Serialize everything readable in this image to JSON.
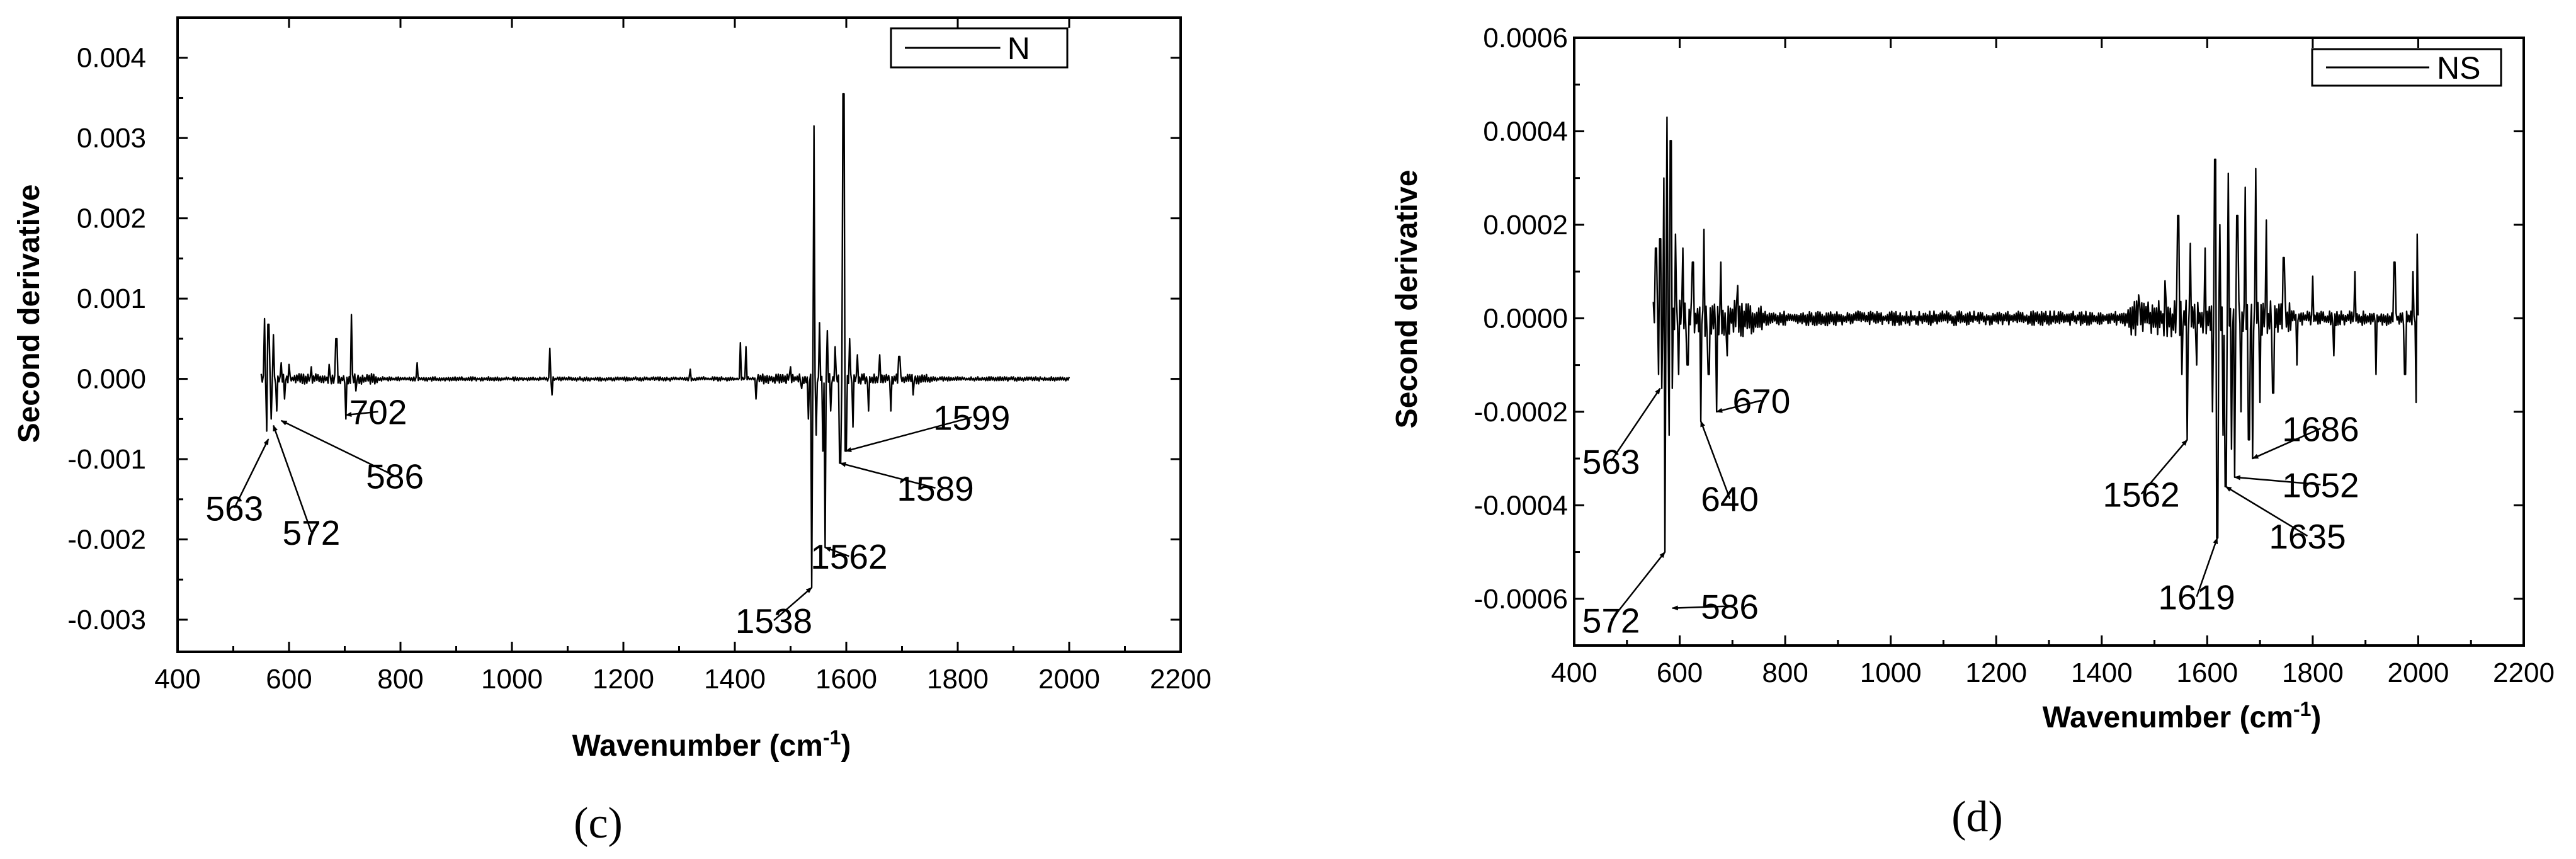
{
  "chart_data": [
    {
      "type": "line",
      "panel_label": "(c)",
      "legend": "N",
      "xlabel": "Wavenumber (cm",
      "xlabel_sup": "-1",
      "xlabel_close": ")",
      "ylabel": "Second derivative",
      "xlim": [
        400,
        2200
      ],
      "ylim": [
        -0.0034,
        0.0045
      ],
      "xticks": [
        400,
        600,
        800,
        1000,
        1200,
        1400,
        1600,
        1800,
        2000,
        2200
      ],
      "xtick_labels": [
        "400",
        "600",
        "800",
        "1000",
        "1200",
        "1400",
        "1600",
        "1800",
        "2000",
        "2200"
      ],
      "yticks": [
        -0.003,
        -0.002,
        -0.001,
        0.0,
        0.001,
        0.002,
        0.003,
        0.004
      ],
      "ytick_labels": [
        "-0.003",
        "-0.002",
        "-0.001",
        "0.000",
        "0.001",
        "0.002",
        "0.003",
        "0.004"
      ],
      "x_range": [
        550,
        2000
      ],
      "noise_amp": 5e-05,
      "base_noise": 2e-05,
      "spikes": [
        {
          "x": 556,
          "y": 0.00075
        },
        {
          "x": 560,
          "y": -0.00065
        },
        {
          "x": 563,
          "y": 0.00068
        },
        {
          "x": 568,
          "y": -0.0005
        },
        {
          "x": 572,
          "y": 0.00055
        },
        {
          "x": 578,
          "y": -0.0004
        },
        {
          "x": 586,
          "y": 0.0002
        },
        {
          "x": 592,
          "y": -0.00025
        },
        {
          "x": 600,
          "y": 0.00018
        },
        {
          "x": 640,
          "y": 0.00015
        },
        {
          "x": 672,
          "y": 0.00018
        },
        {
          "x": 685,
          "y": 0.0005
        },
        {
          "x": 702,
          "y": -0.0005
        },
        {
          "x": 712,
          "y": 0.0008
        },
        {
          "x": 720,
          "y": -0.00015
        },
        {
          "x": 830,
          "y": 0.0002
        },
        {
          "x": 1068,
          "y": 0.00038
        },
        {
          "x": 1072,
          "y": -0.0002
        },
        {
          "x": 1320,
          "y": 0.00012
        },
        {
          "x": 1410,
          "y": 0.00045
        },
        {
          "x": 1420,
          "y": 0.0004
        },
        {
          "x": 1438,
          "y": -0.00025
        },
        {
          "x": 1500,
          "y": 0.00015
        },
        {
          "x": 1520,
          "y": -0.00012
        },
        {
          "x": 1532,
          "y": -0.0005
        },
        {
          "x": 1538,
          "y": -0.0026
        },
        {
          "x": 1542,
          "y": 0.00315
        },
        {
          "x": 1546,
          "y": -0.0007
        },
        {
          "x": 1552,
          "y": 0.0007
        },
        {
          "x": 1558,
          "y": -0.0009
        },
        {
          "x": 1562,
          "y": -0.0021
        },
        {
          "x": 1566,
          "y": 0.0006
        },
        {
          "x": 1572,
          "y": -0.0004
        },
        {
          "x": 1580,
          "y": 0.0004
        },
        {
          "x": 1589,
          "y": -0.00105
        },
        {
          "x": 1595,
          "y": 0.00355
        },
        {
          "x": 1599,
          "y": -0.0009
        },
        {
          "x": 1606,
          "y": 0.0005
        },
        {
          "x": 1612,
          "y": -0.0006
        },
        {
          "x": 1620,
          "y": 0.0003
        },
        {
          "x": 1640,
          "y": -0.0004
        },
        {
          "x": 1660,
          "y": 0.0003
        },
        {
          "x": 1680,
          "y": -0.0004
        },
        {
          "x": 1695,
          "y": 0.00028
        },
        {
          "x": 1720,
          "y": -0.0002
        }
      ],
      "annotations": [
        {
          "text": "563",
          "x": 563,
          "y": -0.00075,
          "tx": 502,
          "ty": -0.00175
        },
        {
          "text": "572",
          "x": 572,
          "y": -0.00058,
          "tx": 640,
          "ty": -0.00205
        },
        {
          "text": "586",
          "x": 586,
          "y": -0.00052,
          "tx": 790,
          "ty": -0.00135
        },
        {
          "text": "702",
          "x": 702,
          "y": -0.00045,
          "tx": 760,
          "ty": -0.00055
        },
        {
          "text": "1538",
          "x": 1538,
          "y": -0.0026,
          "tx": 1470,
          "ty": -0.00315
        },
        {
          "text": "1562",
          "x": 1562,
          "y": -0.0021,
          "tx": 1605,
          "ty": -0.00235
        },
        {
          "text": "1589",
          "x": 1589,
          "y": -0.00105,
          "tx": 1760,
          "ty": -0.0015
        },
        {
          "text": "1599",
          "x": 1599,
          "y": -0.0009,
          "tx": 1825,
          "ty": -0.00062
        }
      ]
    },
    {
      "type": "line",
      "panel_label": "(d)",
      "legend": "NS",
      "xlabel": "Wavenumber (cm",
      "xlabel_sup": "-1",
      "xlabel_close": ")",
      "ylabel": "Second derivative",
      "xlim": [
        400,
        2200
      ],
      "ylim": [
        -0.0007,
        0.0006
      ],
      "xticks": [
        400,
        600,
        800,
        1000,
        1200,
        1400,
        1600,
        1800,
        2000,
        2200
      ],
      "xtick_labels": [
        "400",
        "600",
        "800",
        "1000",
        "1200",
        "1400",
        "1600",
        "1800",
        "2000",
        "2200"
      ],
      "yticks": [
        -0.0006,
        -0.0004,
        -0.0002,
        0.0,
        0.0002,
        0.0004,
        0.0006
      ],
      "ytick_labels": [
        "-0.0006",
        "-0.0004",
        "-0.0002",
        "0.0000",
        "0.0002",
        "0.0004",
        "0.0006"
      ],
      "x_range": [
        550,
        2000
      ],
      "noise_amp": 3e-05,
      "base_noise": 1.2e-05,
      "spikes": [
        {
          "x": 555,
          "y": 0.00015
        },
        {
          "x": 560,
          "y": -0.00012
        },
        {
          "x": 563,
          "y": 0.00017
        },
        {
          "x": 566,
          "y": -0.00015
        },
        {
          "x": 570,
          "y": 0.0003
        },
        {
          "x": 572,
          "y": -0.0005
        },
        {
          "x": 576,
          "y": 0.00043
        },
        {
          "x": 580,
          "y": -0.00025
        },
        {
          "x": 583,
          "y": 0.00038
        },
        {
          "x": 586,
          "y": -0.00015
        },
        {
          "x": 592,
          "y": 0.00018
        },
        {
          "x": 598,
          "y": -0.00012
        },
        {
          "x": 606,
          "y": 0.00015
        },
        {
          "x": 615,
          "y": -0.0001
        },
        {
          "x": 625,
          "y": 0.00012
        },
        {
          "x": 640,
          "y": -0.00022
        },
        {
          "x": 646,
          "y": 0.00019
        },
        {
          "x": 655,
          "y": -0.00012
        },
        {
          "x": 670,
          "y": -0.0002
        },
        {
          "x": 678,
          "y": 0.00012
        },
        {
          "x": 690,
          "y": -8e-05
        },
        {
          "x": 710,
          "y": 7e-05
        },
        {
          "x": 1470,
          "y": 5e-05
        },
        {
          "x": 1520,
          "y": 8e-05
        },
        {
          "x": 1545,
          "y": 0.00022
        },
        {
          "x": 1552,
          "y": -0.00012
        },
        {
          "x": 1562,
          "y": -0.00026
        },
        {
          "x": 1568,
          "y": 0.00016
        },
        {
          "x": 1580,
          "y": -0.0001
        },
        {
          "x": 1596,
          "y": 0.00015
        },
        {
          "x": 1610,
          "y": -0.0002
        },
        {
          "x": 1615,
          "y": 0.00034
        },
        {
          "x": 1619,
          "y": -0.00047
        },
        {
          "x": 1624,
          "y": 0.0002
        },
        {
          "x": 1630,
          "y": -0.00025
        },
        {
          "x": 1635,
          "y": -0.00036
        },
        {
          "x": 1640,
          "y": 0.00031
        },
        {
          "x": 1646,
          "y": -0.00028
        },
        {
          "x": 1652,
          "y": -0.00034
        },
        {
          "x": 1657,
          "y": 0.00022
        },
        {
          "x": 1664,
          "y": -0.0002
        },
        {
          "x": 1672,
          "y": 0.00028
        },
        {
          "x": 1679,
          "y": -0.00026
        },
        {
          "x": 1686,
          "y": -0.0003
        },
        {
          "x": 1692,
          "y": 0.00032
        },
        {
          "x": 1700,
          "y": -0.00018
        },
        {
          "x": 1712,
          "y": 0.00021
        },
        {
          "x": 1725,
          "y": -0.00016
        },
        {
          "x": 1745,
          "y": 0.00013
        },
        {
          "x": 1770,
          "y": -0.0001
        },
        {
          "x": 1800,
          "y": 9e-05
        },
        {
          "x": 1840,
          "y": -8e-05
        },
        {
          "x": 1880,
          "y": 0.0001
        },
        {
          "x": 1920,
          "y": -0.00012
        },
        {
          "x": 1955,
          "y": 0.00012
        },
        {
          "x": 1975,
          "y": -0.00012
        },
        {
          "x": 1990,
          "y": 0.0001
        },
        {
          "x": 1996,
          "y": -0.00018
        },
        {
          "x": 1998,
          "y": 0.00018
        }
      ],
      "annotations": [
        {
          "text": "563",
          "x": 563,
          "y": -0.00015,
          "tx": 470,
          "ty": -0.00033
        },
        {
          "text": "572",
          "x": 572,
          "y": -0.0005,
          "tx": 470,
          "ty": -0.00067
        },
        {
          "text": "586",
          "x": 586,
          "y": -0.00062,
          "tx": 695,
          "ty": -0.00064
        },
        {
          "text": "640",
          "x": 640,
          "y": -0.00022,
          "tx": 695,
          "ty": -0.00041
        },
        {
          "text": "670",
          "x": 670,
          "y": -0.0002,
          "tx": 755,
          "ty": -0.0002
        },
        {
          "text": "1562",
          "x": 1562,
          "y": -0.00026,
          "tx": 1475,
          "ty": -0.0004
        },
        {
          "text": "1619",
          "x": 1619,
          "y": -0.00047,
          "tx": 1580,
          "ty": -0.00062
        },
        {
          "text": "1635",
          "x": 1635,
          "y": -0.00036,
          "tx": 1790,
          "ty": -0.00049
        },
        {
          "text": "1652",
          "x": 1652,
          "y": -0.00034,
          "tx": 1815,
          "ty": -0.00038
        },
        {
          "text": "1686",
          "x": 1686,
          "y": -0.0003,
          "tx": 1815,
          "ty": -0.00026
        }
      ]
    }
  ]
}
